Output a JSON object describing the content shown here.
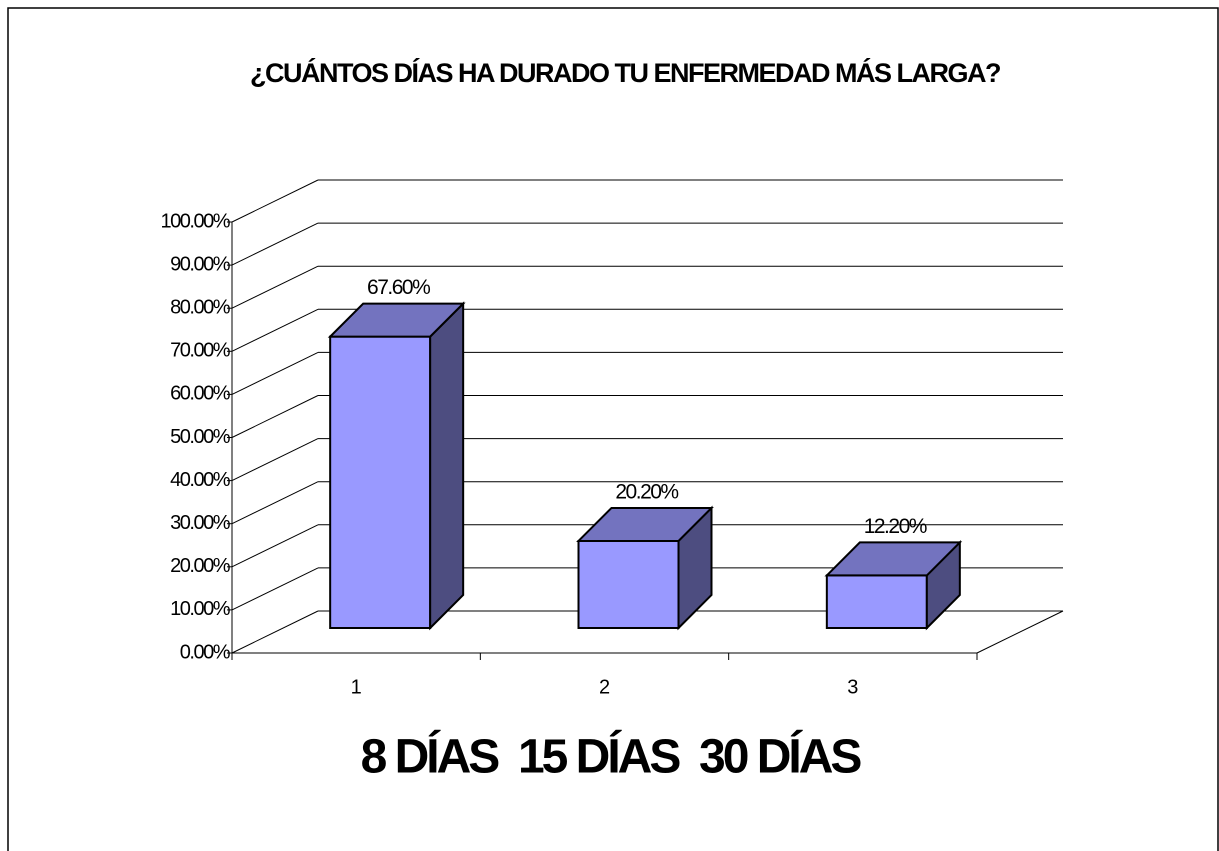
{
  "chart_data": {
    "type": "bar3d",
    "title": "¿CUÁNTOS DÍAS HA DURADO TU ENFERMEDAD MÁS LARGA?",
    "x_label": "8 DÍAS  15 DÍAS  30 DÍAS",
    "categories": [
      "1",
      "2",
      "3"
    ],
    "values": [
      67.6,
      20.2,
      12.2
    ],
    "value_labels": [
      "67.60%",
      "20.20%",
      "12.20%"
    ],
    "color": "#9999ff",
    "ylim": [
      0,
      100
    ],
    "yticks": [
      {
        "value": 0,
        "label": "0.00%"
      },
      {
        "value": 10,
        "label": "10.00%"
      },
      {
        "value": 20,
        "label": "20.00%"
      },
      {
        "value": 30,
        "label": "30.00%"
      },
      {
        "value": 40,
        "label": "40.00%"
      },
      {
        "value": 50,
        "label": "50.00%"
      },
      {
        "value": 60,
        "label": "60.00%"
      },
      {
        "value": 70,
        "label": "70.00%"
      },
      {
        "value": 80,
        "label": "80.00%"
      },
      {
        "value": 90,
        "label": "90.00%"
      },
      {
        "value": 100,
        "label": "100.00%"
      }
    ],
    "grid": true
  }
}
